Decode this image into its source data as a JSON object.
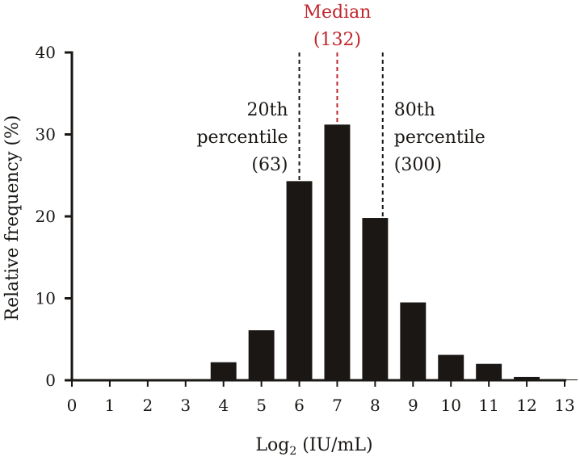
{
  "chart_data": {
    "type": "bar",
    "xlabel": "Log",
    "xlabel_sub": "2",
    "xlabel_unit": " (IU/mL)",
    "ylabel": "Relative frequency (%)",
    "xlim": [
      0,
      13
    ],
    "ylim": [
      0,
      40
    ],
    "x_ticks": [
      0,
      1,
      2,
      3,
      4,
      5,
      6,
      7,
      8,
      9,
      10,
      11,
      12,
      13
    ],
    "y_ticks": [
      0,
      10,
      20,
      30,
      40
    ],
    "x": [
      1,
      2,
      3,
      4,
      5,
      6,
      7,
      8,
      9,
      10,
      11,
      12,
      13
    ],
    "values": [
      0.1,
      0.1,
      0.1,
      2.2,
      6.1,
      24.3,
      31.2,
      19.8,
      9.5,
      3.1,
      2.0,
      0.4,
      0.1
    ],
    "bar_color": "#1a1714",
    "annotations": [
      {
        "key": "p20",
        "x": 6,
        "top": 40,
        "lines": [
          "20th",
          "percentile",
          "(63)"
        ],
        "color": "#1a1714",
        "align": "right"
      },
      {
        "key": "median",
        "x": 7,
        "top": 40,
        "lines": [
          "Median",
          "(132)"
        ],
        "color": "#c0272d",
        "align": "center"
      },
      {
        "key": "p80",
        "x": 8.2,
        "top": 40,
        "lines": [
          "80th",
          "percentile",
          "(300)"
        ],
        "color": "#1a1714",
        "align": "left"
      }
    ]
  }
}
